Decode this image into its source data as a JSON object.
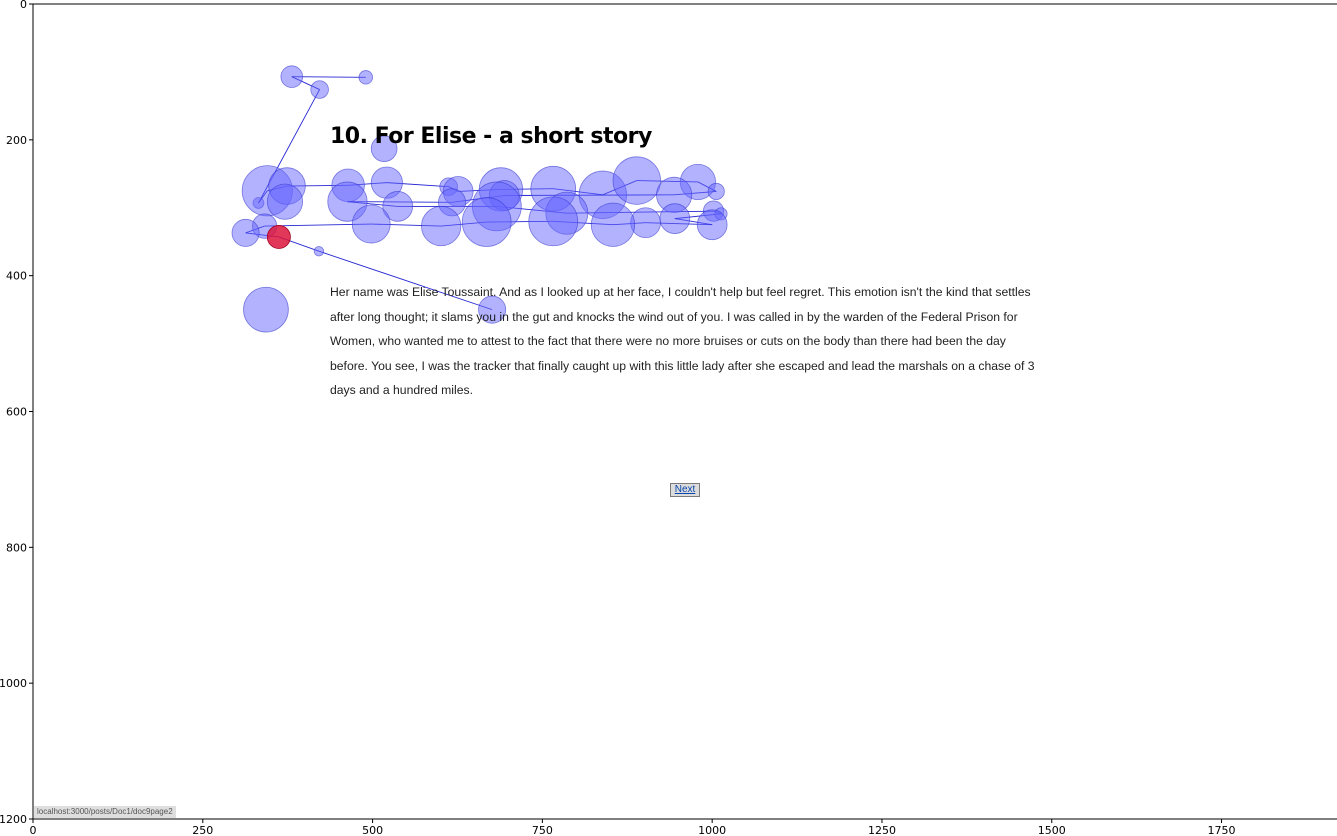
{
  "page": {
    "title": "10. For Elise - a short story",
    "body_text": "Her name was Elise Toussaint. And as I looked up at her face, I couldn't help but feel regret. This emotion isn't the kind that settles after long thought; it slams you in the gut and knocks the wind out of you. I was called in by the warden of the Federal Prison for Women, who wanted me to attest to the fact that there were no more bruises or cuts on the body than there had been the day before. You see, I was the tracker that finally caught up with this little lady after she escaped and lead the marshals on a chase of 3 days and a hundred miles.",
    "next_label": "Next",
    "status_url": "localhost:3000/posts/Doc1/doc9page2"
  },
  "colors": {
    "fixation_fill": "#6666ff",
    "fixation_stroke": "#3333cc",
    "path_line": "#0000cc",
    "current_fixation": "#dc143c"
  },
  "chart_data": {
    "type": "scatter",
    "title": "",
    "xlabel": "",
    "ylabel": "",
    "xlim": [
      0,
      1920
    ],
    "ylim": [
      1200,
      0
    ],
    "x_ticks": [
      0,
      250,
      500,
      750,
      1000,
      1250,
      1500,
      1750
    ],
    "y_ticks": [
      0,
      200,
      400,
      600,
      800,
      1000,
      1200
    ],
    "grid": false,
    "series": [
      {
        "points": [
          {
            "x": 490,
            "y": 108,
            "r": 10
          },
          {
            "x": 381,
            "y": 107,
            "r": 16
          },
          {
            "x": 422,
            "y": 126,
            "r": 13
          },
          {
            "x": 332,
            "y": 293,
            "r": 8
          },
          {
            "x": 345,
            "y": 275,
            "r": 37
          },
          {
            "x": 374,
            "y": 268,
            "r": 27
          },
          {
            "x": 371,
            "y": 291,
            "r": 26
          },
          {
            "x": 464,
            "y": 267,
            "r": 24
          },
          {
            "x": 521,
            "y": 263,
            "r": 23
          },
          {
            "x": 612,
            "y": 269,
            "r": 13
          },
          {
            "x": 626,
            "y": 276,
            "r": 22
          },
          {
            "x": 689,
            "y": 273,
            "r": 32
          },
          {
            "x": 766,
            "y": 272,
            "r": 33
          },
          {
            "x": 839,
            "y": 281,
            "r": 35
          },
          {
            "x": 889,
            "y": 260,
            "r": 35
          },
          {
            "x": 979,
            "y": 262,
            "r": 26
          },
          {
            "x": 1006,
            "y": 276,
            "r": 12
          },
          {
            "x": 944,
            "y": 281,
            "r": 26
          },
          {
            "x": 694,
            "y": 282,
            "r": 22
          },
          {
            "x": 617,
            "y": 292,
            "r": 20
          },
          {
            "x": 463,
            "y": 291,
            "r": 29
          },
          {
            "x": 537,
            "y": 298,
            "r": 22
          },
          {
            "x": 683,
            "y": 298,
            "r": 36
          },
          {
            "x": 786,
            "y": 308,
            "r": 31
          },
          {
            "x": 1002,
            "y": 305,
            "r": 15
          },
          {
            "x": 1013,
            "y": 309,
            "r": 9
          },
          {
            "x": 945,
            "y": 316,
            "r": 22
          },
          {
            "x": 1000,
            "y": 325,
            "r": 22
          },
          {
            "x": 902,
            "y": 322,
            "r": 22
          },
          {
            "x": 854,
            "y": 325,
            "r": 32
          },
          {
            "x": 766,
            "y": 320,
            "r": 36
          },
          {
            "x": 668,
            "y": 321,
            "r": 36
          },
          {
            "x": 601,
            "y": 327,
            "r": 29
          },
          {
            "x": 498,
            "y": 324,
            "r": 28
          },
          {
            "x": 341,
            "y": 327,
            "r": 18
          },
          {
            "x": 313,
            "y": 337,
            "r": 20
          },
          {
            "x": 362,
            "y": 343,
            "r": 17
          },
          {
            "x": 421,
            "y": 364,
            "r": 7
          },
          {
            "x": 676,
            "y": 450,
            "r": 20
          },
          {
            "x": 343,
            "y": 450,
            "r": 33
          },
          {
            "x": 517,
            "y": 213,
            "r": 19
          }
        ],
        "path": [
          0,
          1,
          2,
          3,
          4,
          5,
          7,
          8,
          9,
          10,
          11,
          12,
          13,
          14,
          15,
          16,
          17,
          18,
          19,
          20,
          21,
          22,
          23,
          24,
          25,
          26,
          27,
          28,
          29,
          30,
          31,
          32,
          33,
          34,
          35,
          36,
          37,
          38
        ],
        "current_index": 36
      }
    ]
  }
}
